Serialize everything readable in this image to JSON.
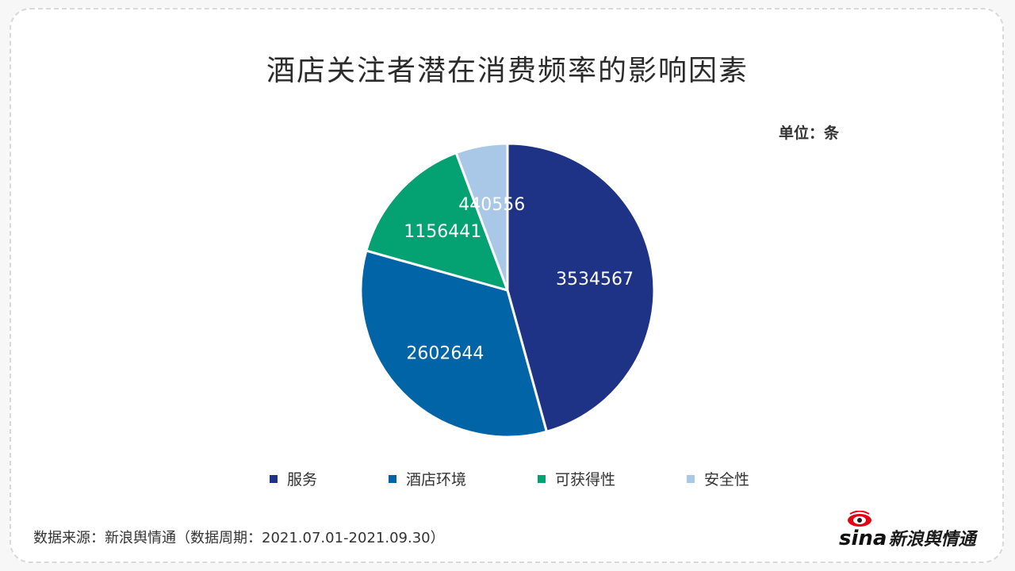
{
  "title": "酒店关注者潜在消费频率的影响因素",
  "unit": "单位：条",
  "source": "数据来源：新浪舆情通（数据周期：2021.07.01-2021.09.30）",
  "logo": {
    "text_latin": "sina",
    "text_cn": "新浪舆情通"
  },
  "chart_data": {
    "type": "pie",
    "title": "酒店关注者潜在消费频率的影响因素",
    "unit": "单位：条",
    "categories": [
      "服务",
      "酒店环境",
      "可获得性",
      "安全性"
    ],
    "values": [
      3534567,
      2602644,
      1156441,
      440556
    ],
    "colors": [
      "#1f3386",
      "#0064a6",
      "#04a173",
      "#a9c8e7"
    ],
    "labels": [
      "3534567",
      "2602644",
      "1156441",
      "440556"
    ],
    "legend_position": "bottom"
  }
}
